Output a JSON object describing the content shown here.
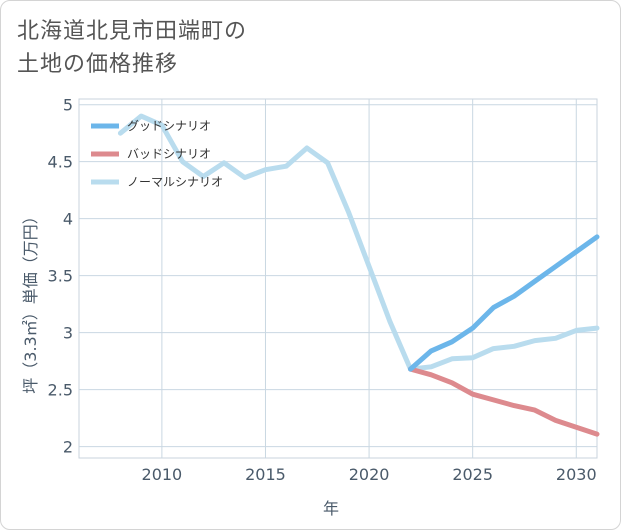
{
  "title_lines": [
    "北海道北見市田端町の",
    "土地の価格推移"
  ],
  "chart_data": {
    "type": "line",
    "title": "北海道北見市田端町の土地の価格推移",
    "xlabel": "年",
    "ylabel": "坪（3.3㎡）単価（万円）",
    "xlim": [
      2006,
      2031
    ],
    "ylim": [
      1.9,
      5.05
    ],
    "xticks": [
      2010,
      2015,
      2020,
      2025,
      2030
    ],
    "yticks": [
      2,
      2.5,
      3,
      3.5,
      4,
      4.5,
      5
    ],
    "grid": true,
    "legend_position": "top-left",
    "series": [
      {
        "name": "グッドシナリオ",
        "color": "#6cb6ea",
        "x": [
          2022,
          2023,
          2024,
          2025,
          2026,
          2027,
          2028,
          2029,
          2030,
          2031
        ],
        "y": [
          2.68,
          2.84,
          2.92,
          3.04,
          3.22,
          3.32,
          3.45,
          3.58,
          3.71,
          3.84
        ]
      },
      {
        "name": "バッドシナリオ",
        "color": "#dd8a8e",
        "x": [
          2022,
          2023,
          2024,
          2025,
          2026,
          2027,
          2028,
          2029,
          2030,
          2031
        ],
        "y": [
          2.68,
          2.63,
          2.56,
          2.46,
          2.41,
          2.36,
          2.32,
          2.23,
          2.17,
          2.11
        ]
      },
      {
        "name": "ノーマルシナリオ",
        "color": "#b9dcee",
        "x": [
          2008,
          2009,
          2010,
          2011,
          2012,
          2013,
          2014,
          2015,
          2016,
          2017,
          2018,
          2019,
          2020,
          2021,
          2022,
          2023,
          2024,
          2025,
          2026,
          2027,
          2028,
          2029,
          2030,
          2031
        ],
        "y": [
          4.75,
          4.9,
          4.82,
          4.5,
          4.37,
          4.49,
          4.36,
          4.43,
          4.46,
          4.62,
          4.49,
          4.06,
          3.58,
          3.1,
          2.68,
          2.7,
          2.77,
          2.78,
          2.86,
          2.88,
          2.93,
          2.95,
          3.02,
          3.04
        ]
      }
    ]
  }
}
